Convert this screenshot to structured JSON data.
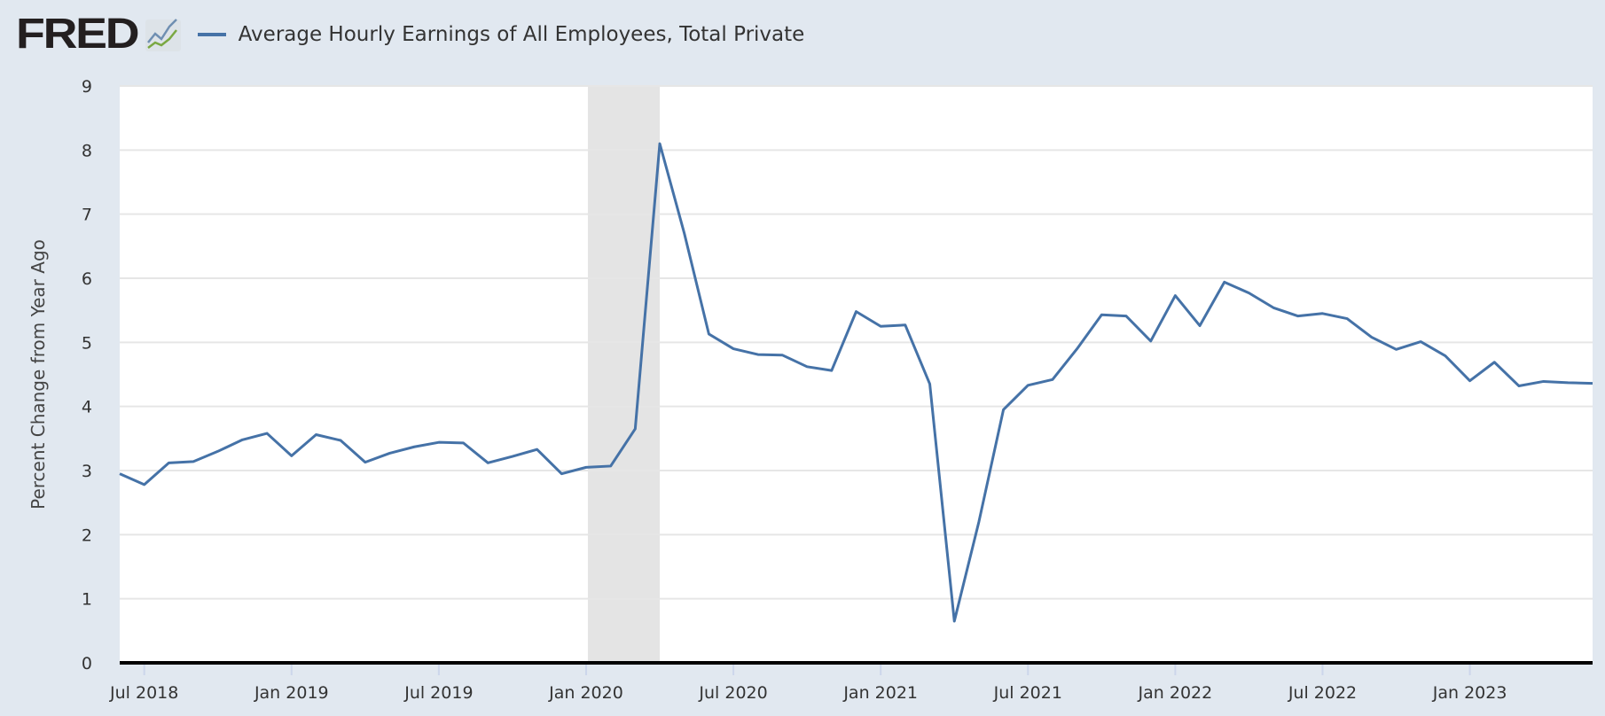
{
  "header": {
    "logo": "FRED",
    "series_title": "Average Hourly Earnings of All Employees, Total Private"
  },
  "chart_data": {
    "type": "line",
    "title": "Average Hourly Earnings of All Employees, Total Private",
    "xlabel": "",
    "ylabel": "Percent Change from Year Ago",
    "ylim": [
      0,
      9
    ],
    "yticks": [
      "0",
      "1",
      "2",
      "3",
      "4",
      "5",
      "6",
      "7",
      "8",
      "9"
    ],
    "xticks": [
      {
        "label": "Jul 2018",
        "index": 1
      },
      {
        "label": "Jan 2019",
        "index": 7
      },
      {
        "label": "Jul 2019",
        "index": 13
      },
      {
        "label": "Jan 2020",
        "index": 19
      },
      {
        "label": "Jul 2020",
        "index": 25
      },
      {
        "label": "Jan 2021",
        "index": 31
      },
      {
        "label": "Jul 2021",
        "index": 37
      },
      {
        "label": "Jan 2022",
        "index": 43
      },
      {
        "label": "Jul 2022",
        "index": 49
      },
      {
        "label": "Jan 2023",
        "index": 55
      }
    ],
    "x_start": "2018-06",
    "x_end": "2023-06",
    "grid": true,
    "recession": {
      "start_index": 20,
      "end_index": 22,
      "label": "2020 recession"
    },
    "series": [
      {
        "name": "Average Hourly Earnings of All Employees, Total Private",
        "color": "#4572a7",
        "values": [
          2.95,
          2.78,
          3.12,
          3.14,
          3.3,
          3.48,
          3.58,
          3.23,
          3.56,
          3.47,
          3.13,
          3.27,
          3.37,
          3.44,
          3.43,
          3.12,
          3.22,
          3.33,
          2.95,
          3.05,
          3.07,
          3.65,
          8.1,
          6.7,
          5.13,
          4.9,
          4.81,
          4.8,
          4.62,
          4.56,
          5.48,
          5.25,
          5.27,
          4.35,
          0.65,
          2.2,
          3.95,
          4.33,
          4.42,
          4.9,
          5.43,
          5.41,
          5.02,
          5.73,
          5.26,
          5.94,
          5.77,
          5.54,
          5.41,
          5.45,
          5.37,
          5.08,
          4.89,
          5.01,
          4.79,
          4.4,
          4.69,
          4.32,
          4.39,
          4.37,
          4.36
        ]
      }
    ]
  }
}
